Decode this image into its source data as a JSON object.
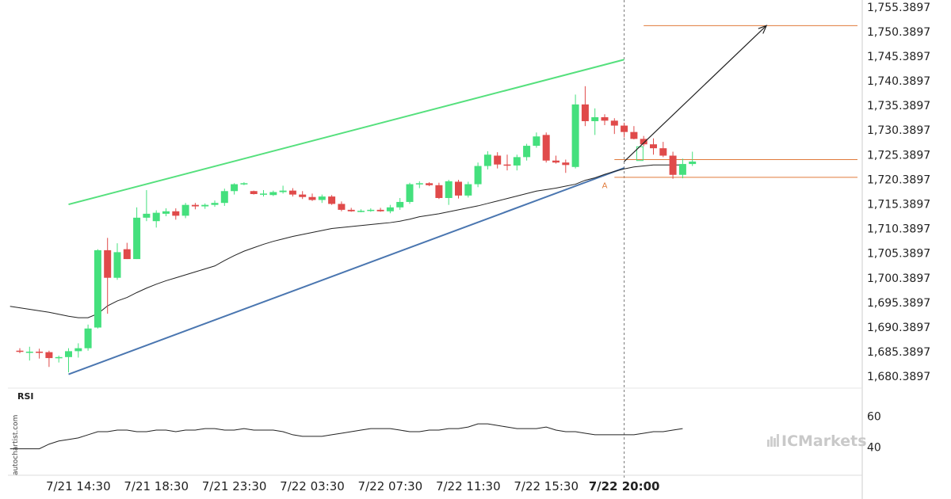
{
  "chart_data": {
    "type": "candlestick",
    "price_axis": {
      "ticks": [
        "1,755.3897",
        "1,750.3897",
        "1,745.3897",
        "1,740.3897",
        "1,735.3897",
        "1,730.3897",
        "1,725.3897",
        "1,720.3897",
        "1,715.3897",
        "1,710.3897",
        "1,705.3897",
        "1,700.3897",
        "1,695.3897",
        "1,690.3897",
        "1,685.3897",
        "1,680.3897"
      ],
      "tick_values": [
        1755.3897,
        1750.3897,
        1745.3897,
        1740.3897,
        1735.3897,
        1730.3897,
        1725.3897,
        1720.3897,
        1715.3897,
        1710.3897,
        1705.3897,
        1700.3897,
        1695.3897,
        1690.3897,
        1685.3897,
        1680.3897
      ],
      "ylim": [
        1678.0,
        1756.8
      ]
    },
    "time_axis": {
      "ticks": [
        {
          "label": "7/21 14:30",
          "index": 6,
          "bold": false
        },
        {
          "label": "7/21 18:30",
          "index": 14,
          "bold": false
        },
        {
          "label": "7/21 23:30",
          "index": 22,
          "bold": false
        },
        {
          "label": "7/22 03:30",
          "index": 30,
          "bold": false
        },
        {
          "label": "7/22 07:30",
          "index": 38,
          "bold": false
        },
        {
          "label": "7/22 11:30",
          "index": 46,
          "bold": false
        },
        {
          "label": "7/22 15:30",
          "index": 54,
          "bold": false
        },
        {
          "label": "7/22 20:00",
          "index": 62,
          "bold": true
        }
      ],
      "bar_count": 70
    },
    "candles": [
      {
        "o": 1685.6,
        "h": 1686.1,
        "l": 1685.1,
        "c": 1685.4
      },
      {
        "o": 1685.4,
        "h": 1686.4,
        "l": 1683.6,
        "c": 1685.4
      },
      {
        "o": 1685.4,
        "h": 1686.0,
        "l": 1684.0,
        "c": 1685.3
      },
      {
        "o": 1685.3,
        "h": 1685.6,
        "l": 1682.3,
        "c": 1684.1
      },
      {
        "o": 1684.1,
        "h": 1684.6,
        "l": 1683.2,
        "c": 1684.3
      },
      {
        "o": 1684.3,
        "h": 1686.1,
        "l": 1681.2,
        "c": 1685.5
      },
      {
        "o": 1685.5,
        "h": 1687.1,
        "l": 1684.2,
        "c": 1686.1
      },
      {
        "o": 1686.1,
        "h": 1690.9,
        "l": 1685.6,
        "c": 1690.1
      },
      {
        "o": 1690.3,
        "h": 1706.2,
        "l": 1690.1,
        "c": 1706.0
      },
      {
        "o": 1706.0,
        "h": 1708.5,
        "l": 1693.1,
        "c": 1700.4
      },
      {
        "o": 1700.4,
        "h": 1707.4,
        "l": 1700.0,
        "c": 1705.6
      },
      {
        "o": 1706.2,
        "h": 1707.5,
        "l": 1704.2,
        "c": 1704.2
      },
      {
        "o": 1704.2,
        "h": 1714.7,
        "l": 1704.2,
        "c": 1712.6
      },
      {
        "o": 1712.6,
        "h": 1718.2,
        "l": 1711.9,
        "c": 1713.4
      },
      {
        "o": 1711.9,
        "h": 1714.1,
        "l": 1710.6,
        "c": 1713.6
      },
      {
        "o": 1713.4,
        "h": 1714.5,
        "l": 1712.9,
        "c": 1713.9
      },
      {
        "o": 1713.9,
        "h": 1714.5,
        "l": 1712.2,
        "c": 1713.0
      },
      {
        "o": 1713.0,
        "h": 1715.6,
        "l": 1712.5,
        "c": 1715.2
      },
      {
        "o": 1715.2,
        "h": 1715.6,
        "l": 1714.3,
        "c": 1714.9
      },
      {
        "o": 1714.9,
        "h": 1715.5,
        "l": 1714.4,
        "c": 1715.2
      },
      {
        "o": 1715.2,
        "h": 1716.1,
        "l": 1714.8,
        "c": 1715.6
      },
      {
        "o": 1715.6,
        "h": 1718.5,
        "l": 1715.0,
        "c": 1718.0
      },
      {
        "o": 1718.0,
        "h": 1719.6,
        "l": 1717.3,
        "c": 1719.4
      },
      {
        "o": 1719.4,
        "h": 1719.8,
        "l": 1719.2,
        "c": 1719.6
      },
      {
        "o": 1718.0,
        "h": 1718.1,
        "l": 1717.3,
        "c": 1717.4
      },
      {
        "o": 1717.4,
        "h": 1718.2,
        "l": 1716.9,
        "c": 1717.5
      },
      {
        "o": 1717.2,
        "h": 1718.1,
        "l": 1717.0,
        "c": 1717.8
      },
      {
        "o": 1717.8,
        "h": 1719.1,
        "l": 1717.5,
        "c": 1718.1
      },
      {
        "o": 1718.1,
        "h": 1718.6,
        "l": 1716.9,
        "c": 1717.3
      },
      {
        "o": 1717.3,
        "h": 1718.0,
        "l": 1716.4,
        "c": 1716.8
      },
      {
        "o": 1716.8,
        "h": 1717.5,
        "l": 1716.0,
        "c": 1716.2
      },
      {
        "o": 1716.2,
        "h": 1717.3,
        "l": 1715.6,
        "c": 1716.9
      },
      {
        "o": 1716.9,
        "h": 1717.2,
        "l": 1715.2,
        "c": 1715.4
      },
      {
        "o": 1715.4,
        "h": 1715.9,
        "l": 1713.9,
        "c": 1714.2
      },
      {
        "o": 1714.2,
        "h": 1714.6,
        "l": 1713.8,
        "c": 1713.9
      },
      {
        "o": 1713.9,
        "h": 1714.3,
        "l": 1713.7,
        "c": 1714.0
      },
      {
        "o": 1714.0,
        "h": 1714.5,
        "l": 1713.8,
        "c": 1714.2
      },
      {
        "o": 1714.2,
        "h": 1714.6,
        "l": 1713.8,
        "c": 1713.9
      },
      {
        "o": 1713.9,
        "h": 1715.2,
        "l": 1713.5,
        "c": 1714.7
      },
      {
        "o": 1714.7,
        "h": 1716.6,
        "l": 1714.2,
        "c": 1715.8
      },
      {
        "o": 1715.8,
        "h": 1719.7,
        "l": 1715.4,
        "c": 1719.4
      },
      {
        "o": 1719.4,
        "h": 1720.0,
        "l": 1718.6,
        "c": 1719.6
      },
      {
        "o": 1719.6,
        "h": 1719.8,
        "l": 1719.0,
        "c": 1719.2
      },
      {
        "o": 1719.2,
        "h": 1719.7,
        "l": 1716.4,
        "c": 1716.6
      },
      {
        "o": 1716.6,
        "h": 1720.3,
        "l": 1715.2,
        "c": 1720.0
      },
      {
        "o": 1719.9,
        "h": 1720.3,
        "l": 1716.5,
        "c": 1717.1
      },
      {
        "o": 1717.1,
        "h": 1719.9,
        "l": 1716.7,
        "c": 1719.4
      },
      {
        "o": 1719.4,
        "h": 1723.8,
        "l": 1718.8,
        "c": 1723.1
      },
      {
        "o": 1723.1,
        "h": 1726.1,
        "l": 1722.4,
        "c": 1725.4
      },
      {
        "o": 1725.2,
        "h": 1725.9,
        "l": 1722.6,
        "c": 1723.4
      },
      {
        "o": 1723.4,
        "h": 1725.4,
        "l": 1722.2,
        "c": 1723.2
      },
      {
        "o": 1723.2,
        "h": 1725.4,
        "l": 1722.2,
        "c": 1724.9
      },
      {
        "o": 1724.9,
        "h": 1727.6,
        "l": 1724.2,
        "c": 1727.2
      },
      {
        "o": 1727.2,
        "h": 1729.9,
        "l": 1726.8,
        "c": 1729.1
      },
      {
        "o": 1729.4,
        "h": 1729.9,
        "l": 1723.8,
        "c": 1724.2
      },
      {
        "o": 1724.2,
        "h": 1725.2,
        "l": 1723.6,
        "c": 1723.8
      },
      {
        "o": 1723.8,
        "h": 1724.4,
        "l": 1721.7,
        "c": 1723.3
      },
      {
        "o": 1722.9,
        "h": 1737.6,
        "l": 1722.6,
        "c": 1735.6
      },
      {
        "o": 1735.6,
        "h": 1739.3,
        "l": 1731.2,
        "c": 1732.2
      },
      {
        "o": 1732.2,
        "h": 1734.8,
        "l": 1729.4,
        "c": 1733.0
      },
      {
        "o": 1733.0,
        "h": 1733.6,
        "l": 1731.4,
        "c": 1732.3
      },
      {
        "o": 1732.3,
        "h": 1732.8,
        "l": 1729.6,
        "c": 1731.3
      },
      {
        "o": 1731.3,
        "h": 1731.9,
        "l": 1728.9,
        "c": 1730.0
      },
      {
        "o": 1730.0,
        "h": 1731.2,
        "l": 1728.5,
        "c": 1728.6
      },
      {
        "o": 1728.6,
        "h": 1729.2,
        "l": 1727.1,
        "c": 1727.5
      },
      {
        "o": 1727.5,
        "h": 1728.7,
        "l": 1725.4,
        "c": 1726.7
      },
      {
        "o": 1726.7,
        "h": 1728.0,
        "l": 1724.9,
        "c": 1725.2
      },
      {
        "o": 1725.2,
        "h": 1726.0,
        "l": 1720.5,
        "c": 1721.3
      },
      {
        "o": 1721.3,
        "h": 1724.6,
        "l": 1720.6,
        "c": 1723.5
      },
      {
        "o": 1723.5,
        "h": 1726.0,
        "l": 1723.1,
        "c": 1724.0
      }
    ],
    "ma_line": [
      1694.6,
      1694.3,
      1694.0,
      1693.7,
      1693.4,
      1693.0,
      1692.6,
      1692.3,
      1692.3,
      1693.1,
      1694.7,
      1695.7,
      1696.4,
      1697.4,
      1698.3,
      1699.1,
      1699.8,
      1700.4,
      1701.0,
      1701.6,
      1702.2,
      1702.8,
      1703.9,
      1704.9,
      1705.8,
      1706.5,
      1707.2,
      1707.8,
      1708.3,
      1708.8,
      1709.2,
      1709.6,
      1710.0,
      1710.4,
      1710.6,
      1710.8,
      1711.0,
      1711.2,
      1711.4,
      1711.6,
      1711.9,
      1712.3,
      1712.8,
      1713.1,
      1713.4,
      1713.8,
      1714.2,
      1714.6,
      1715.0,
      1715.5,
      1716.0,
      1716.5,
      1717.0,
      1717.5,
      1718.0,
      1718.3,
      1718.6,
      1719.0,
      1719.4,
      1720.2,
      1720.7,
      1721.4,
      1722.0,
      1722.5,
      1722.9,
      1723.1,
      1723.3,
      1723.3,
      1723.3,
      1723.3
    ],
    "upper_trendline": {
      "points": [
        [
          5,
          1715.3
        ],
        [
          62,
          1744.7
        ]
      ],
      "color": "#55e07d"
    },
    "lower_trendline": {
      "points": [
        [
          5,
          1680.8
        ],
        [
          62,
          1722.7
        ]
      ],
      "color": "#4a76b0"
    },
    "horizontal_levels": [
      {
        "value": 1751.6,
        "from_index": 64,
        "color": "#e07a3a"
      },
      {
        "value": 1724.4,
        "from_index": 61,
        "color": "#e07a3a"
      },
      {
        "value": 1720.8,
        "from_index": 61,
        "color": "#e07a3a"
      }
    ],
    "forecast_arrow": {
      "from": [
        62,
        1724.0
      ],
      "to": [
        77,
        1751.6
      ],
      "color": "#222222"
    },
    "pattern_point": {
      "label": "A",
      "index": 60,
      "value": 1720.2
    },
    "forecast_box": {
      "index": 63,
      "o": 1724.2,
      "c": 1727.0
    },
    "current_marker_index": 62,
    "rsi": {
      "title": "RSI",
      "ticks": [
        "60",
        "40"
      ],
      "tick_values": [
        60,
        40
      ],
      "ylim": [
        22,
        78
      ],
      "values": [
        39,
        39,
        39,
        39,
        42,
        44,
        45,
        46,
        48,
        50,
        50,
        51,
        51,
        50,
        50,
        51,
        51,
        50,
        51,
        51,
        52,
        52,
        51,
        51,
        52,
        51,
        51,
        51,
        50,
        48,
        47,
        47,
        47,
        48,
        49,
        50,
        51,
        52,
        52,
        52,
        51,
        50,
        50,
        51,
        51,
        52,
        52,
        53,
        55,
        55,
        54,
        53,
        52,
        52,
        52,
        53,
        51,
        50,
        50,
        49,
        48,
        48,
        48,
        48,
        48,
        49,
        50,
        50,
        51,
        52
      ]
    },
    "up_color": "#44e07d",
    "down_color": "#e04a4a"
  },
  "watermark": "autochartist.com",
  "brand": "ICMarkets",
  "brand_icon": "brand-icon"
}
